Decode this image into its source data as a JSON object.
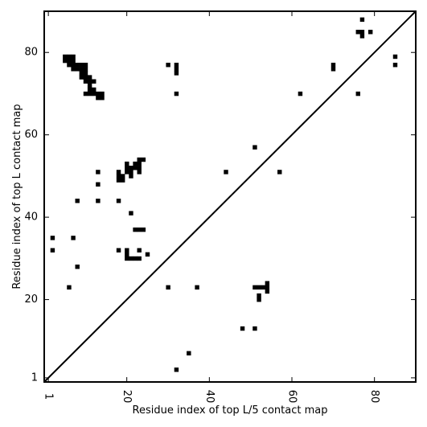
{
  "chart_data": {
    "type": "heatmap",
    "xlabel": "Residue index of top L/5 contact map",
    "ylabel": "Residue index of top L contact map",
    "xlim": [
      0,
      90
    ],
    "ylim": [
      0,
      90
    ],
    "x_ticks": [
      {
        "value": 1,
        "label": "1"
      },
      {
        "value": 20,
        "label": "20"
      },
      {
        "value": 40,
        "label": "40"
      },
      {
        "value": 60,
        "label": "60"
      },
      {
        "value": 80,
        "label": "80"
      }
    ],
    "y_ticks": [
      {
        "value": 1,
        "label": "1"
      },
      {
        "value": 20,
        "label": "20"
      },
      {
        "value": 40,
        "label": "40"
      },
      {
        "value": 60,
        "label": "60"
      },
      {
        "value": 80,
        "label": "80"
      }
    ],
    "diagonal": true,
    "grid": false,
    "cell_color": "#000000",
    "contacts": [
      [
        5,
        79
      ],
      [
        6,
        79
      ],
      [
        7,
        79
      ],
      [
        5,
        78
      ],
      [
        6,
        78
      ],
      [
        7,
        78
      ],
      [
        6,
        77
      ],
      [
        7,
        77
      ],
      [
        8,
        77
      ],
      [
        9,
        77
      ],
      [
        10,
        77
      ],
      [
        7,
        76
      ],
      [
        8,
        76
      ],
      [
        9,
        76
      ],
      [
        10,
        76
      ],
      [
        9,
        75
      ],
      [
        10,
        75
      ],
      [
        9,
        74
      ],
      [
        10,
        74
      ],
      [
        11,
        74
      ],
      [
        10,
        73
      ],
      [
        11,
        73
      ],
      [
        12,
        73
      ],
      [
        11,
        72
      ],
      [
        11,
        71
      ],
      [
        12,
        71
      ],
      [
        10,
        70
      ],
      [
        11,
        70
      ],
      [
        12,
        70
      ],
      [
        13,
        70
      ],
      [
        14,
        70
      ],
      [
        13,
        69
      ],
      [
        14,
        69
      ],
      [
        77,
        88
      ],
      [
        76,
        85
      ],
      [
        77,
        85
      ],
      [
        79,
        85
      ],
      [
        77,
        84
      ],
      [
        85,
        79
      ],
      [
        85,
        77
      ],
      [
        70,
        77
      ],
      [
        70,
        76
      ],
      [
        76,
        70
      ],
      [
        62,
        70
      ],
      [
        30,
        77
      ],
      [
        32,
        77
      ],
      [
        32,
        76
      ],
      [
        32,
        75
      ],
      [
        32,
        70
      ],
      [
        51,
        57
      ],
      [
        44,
        51
      ],
      [
        57,
        51
      ],
      [
        23,
        54
      ],
      [
        24,
        54
      ],
      [
        22,
        53
      ],
      [
        23,
        53
      ],
      [
        20,
        53
      ],
      [
        20,
        52
      ],
      [
        21,
        52
      ],
      [
        22,
        52
      ],
      [
        23,
        52
      ],
      [
        18,
        51
      ],
      [
        20,
        51
      ],
      [
        21,
        51
      ],
      [
        23,
        51
      ],
      [
        18,
        50
      ],
      [
        19,
        50
      ],
      [
        21,
        50
      ],
      [
        18,
        49
      ],
      [
        19,
        49
      ],
      [
        13,
        51
      ],
      [
        13,
        48
      ],
      [
        8,
        44
      ],
      [
        13,
        44
      ],
      [
        18,
        44
      ],
      [
        21,
        41
      ],
      [
        22,
        37
      ],
      [
        23,
        37
      ],
      [
        24,
        37
      ],
      [
        2,
        35
      ],
      [
        7,
        35
      ],
      [
        2,
        32
      ],
      [
        18,
        32
      ],
      [
        20,
        32
      ],
      [
        23,
        32
      ],
      [
        20,
        31
      ],
      [
        25,
        31
      ],
      [
        20,
        30
      ],
      [
        21,
        30
      ],
      [
        22,
        30
      ],
      [
        23,
        30
      ],
      [
        8,
        28
      ],
      [
        6,
        23
      ],
      [
        30,
        23
      ],
      [
        37,
        23
      ],
      [
        51,
        23
      ],
      [
        52,
        23
      ],
      [
        53,
        23
      ],
      [
        54,
        23
      ],
      [
        54,
        24
      ],
      [
        54,
        22
      ],
      [
        52,
        21
      ],
      [
        52,
        20
      ],
      [
        48,
        13
      ],
      [
        51,
        13
      ],
      [
        35,
        7
      ],
      [
        32,
        3
      ]
    ]
  }
}
